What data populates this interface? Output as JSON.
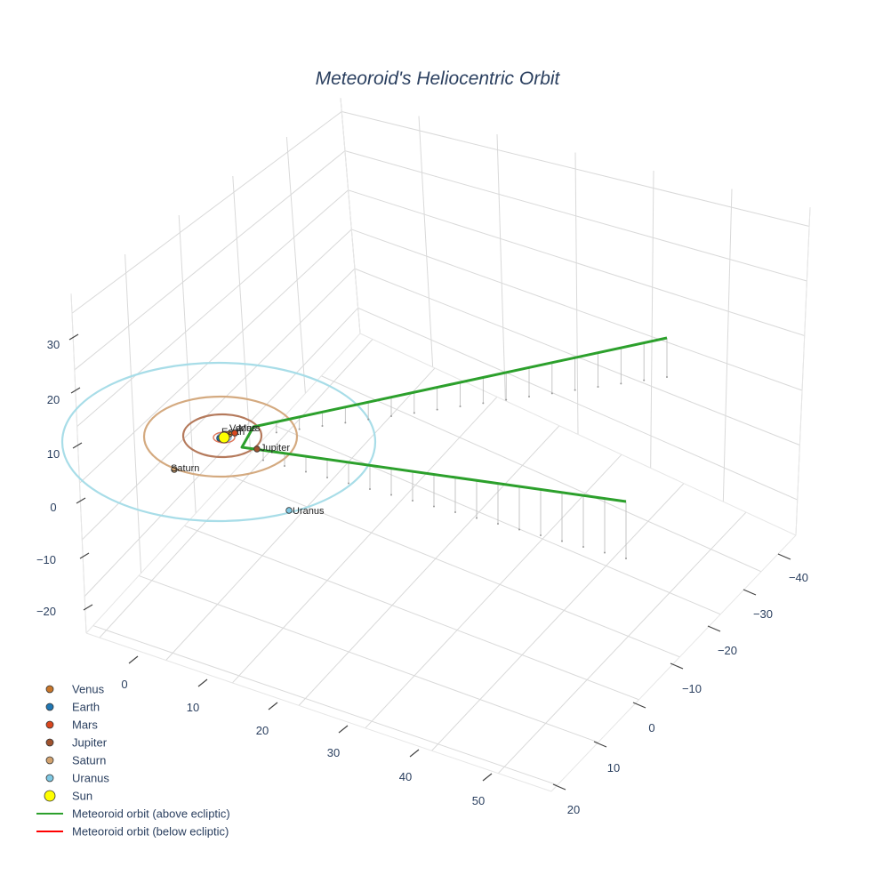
{
  "chart_data": {
    "type": "scatter3d",
    "title": "Meteoroid's Heliocentric Orbit",
    "axes": {
      "z_ticks": [
        "30",
        "20",
        "10",
        "0",
        "−10",
        "−20"
      ],
      "x_ticks": [
        "0",
        "10",
        "20",
        "30",
        "40",
        "50"
      ],
      "y_ticks": [
        "−40",
        "−30",
        "−20",
        "−10",
        "0",
        "10",
        "20"
      ],
      "grid": true
    },
    "planets": [
      {
        "name": "Venus",
        "label": "Venus",
        "color": "#c8762a"
      },
      {
        "name": "Earth",
        "label": "Earth",
        "color": "#1f77b4"
      },
      {
        "name": "Mars",
        "label": "Mars",
        "color": "#d9471e"
      },
      {
        "name": "Jupiter",
        "label": "Jupiter",
        "color": "#a0522d"
      },
      {
        "name": "Saturn",
        "label": "Saturn",
        "color": "#d2a26e"
      },
      {
        "name": "Uranus",
        "label": "Uranus",
        "color": "#7ec8e3"
      }
    ],
    "sun": {
      "name": "Sun",
      "color": "#ffff00"
    },
    "orbit_colors": {
      "venus": "#e8a87c",
      "earth": "#8fb3d9",
      "mars": "#e07a5f",
      "jupiter": "#b57a5c",
      "saturn": "#d4aa80",
      "uranus": "#a8dde8"
    },
    "meteoroid_above": {
      "name": "Meteoroid orbit (above ecliptic)",
      "color": "#2ca02c"
    },
    "meteoroid_below": {
      "name": "Meteoroid orbit (below ecliptic)",
      "color": "#ff0000"
    },
    "legend_position": "bottom-left"
  }
}
